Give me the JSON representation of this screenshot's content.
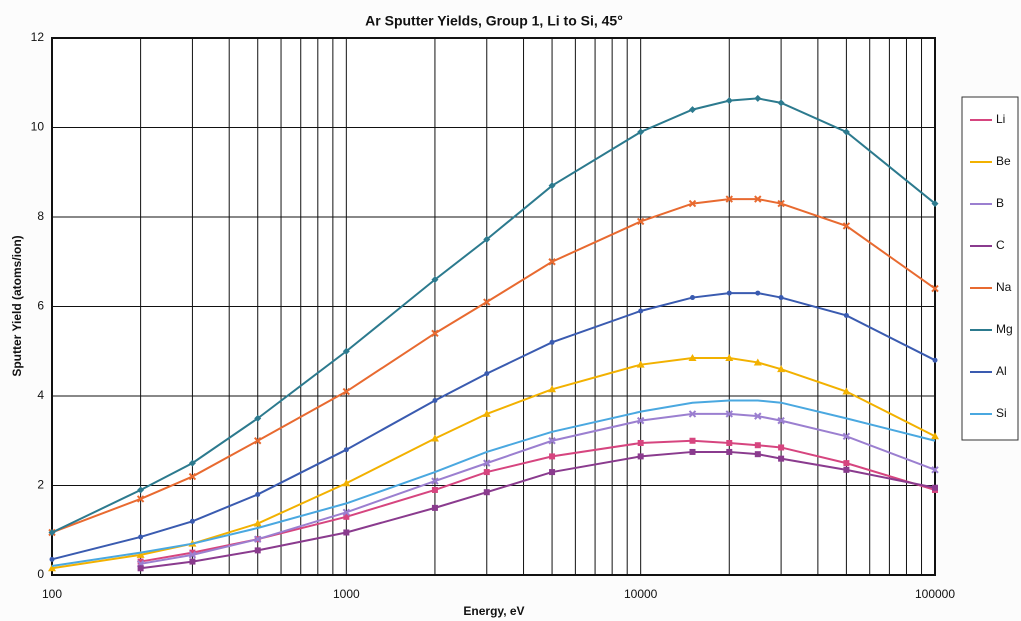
{
  "chart_data": {
    "type": "line",
    "title": "Ar Sputter Yields, Group 1, Li to Si, 45°",
    "x_label": "Energy, eV",
    "y_label": "Sputter Yield (atoms/ion)",
    "x": [
      100,
      200,
      300,
      500,
      1000,
      2000,
      3000,
      5000,
      10000,
      15000,
      20000,
      25000,
      30000,
      50000,
      100000
    ],
    "xlog": true,
    "xlim": [
      100,
      100000
    ],
    "xticks": [
      100,
      1000,
      10000,
      100000
    ],
    "xminorticks": [
      200,
      300,
      400,
      500,
      600,
      700,
      800,
      900,
      2000,
      3000,
      4000,
      5000,
      6000,
      7000,
      8000,
      9000,
      20000,
      30000,
      40000,
      50000,
      60000,
      70000,
      80000,
      90000
    ],
    "ylim": [
      0,
      12
    ],
    "yticks": [
      0,
      2,
      4,
      6,
      8,
      10,
      12
    ],
    "grid": true,
    "legend": "right",
    "series": [
      {
        "name": "Li",
        "color": "#d6457f",
        "marker": "square",
        "values": [
          null,
          0.3,
          0.5,
          0.8,
          1.3,
          1.9,
          2.3,
          2.65,
          2.95,
          3.0,
          2.95,
          2.9,
          2.85,
          2.5,
          1.9
        ]
      },
      {
        "name": "Be",
        "color": "#f2b100",
        "marker": "triangle",
        "values": [
          0.15,
          0.45,
          0.7,
          1.15,
          2.05,
          3.05,
          3.6,
          4.15,
          4.7,
          4.85,
          4.85,
          4.75,
          4.6,
          4.1,
          3.1
        ]
      },
      {
        "name": "B",
        "color": "#9b7fd0",
        "marker": "x",
        "values": [
          null,
          0.25,
          0.45,
          0.8,
          1.4,
          2.1,
          2.5,
          3.0,
          3.45,
          3.6,
          3.6,
          3.55,
          3.45,
          3.1,
          2.35
        ]
      },
      {
        "name": "C",
        "color": "#8a3b8e",
        "marker": "square",
        "values": [
          null,
          0.15,
          0.3,
          0.55,
          0.95,
          1.5,
          1.85,
          2.3,
          2.65,
          2.75,
          2.75,
          2.7,
          2.6,
          2.35,
          1.95
        ]
      },
      {
        "name": "Na",
        "color": "#e86a30",
        "marker": "x",
        "values": [
          0.95,
          1.7,
          2.2,
          3.0,
          4.1,
          5.4,
          6.1,
          7.0,
          7.9,
          8.3,
          8.4,
          8.4,
          8.3,
          7.8,
          6.4
        ]
      },
      {
        "name": "Mg",
        "color": "#2c7a8e",
        "marker": "diamond",
        "values": [
          0.95,
          1.9,
          2.5,
          3.5,
          5.0,
          6.6,
          7.5,
          8.7,
          9.9,
          10.4,
          10.6,
          10.65,
          10.55,
          9.9,
          8.3
        ]
      },
      {
        "name": "Al",
        "color": "#3a5bb0",
        "marker": "circle",
        "values": [
          0.35,
          0.85,
          1.2,
          1.8,
          2.8,
          3.9,
          4.5,
          5.2,
          5.9,
          6.2,
          6.3,
          6.3,
          6.2,
          5.8,
          4.8
        ]
      },
      {
        "name": "Si",
        "color": "#4aa8e0",
        "marker": "none",
        "values": [
          0.2,
          0.5,
          0.7,
          1.05,
          1.6,
          2.3,
          2.75,
          3.2,
          3.65,
          3.85,
          3.9,
          3.9,
          3.85,
          3.5,
          3.0
        ]
      }
    ]
  }
}
